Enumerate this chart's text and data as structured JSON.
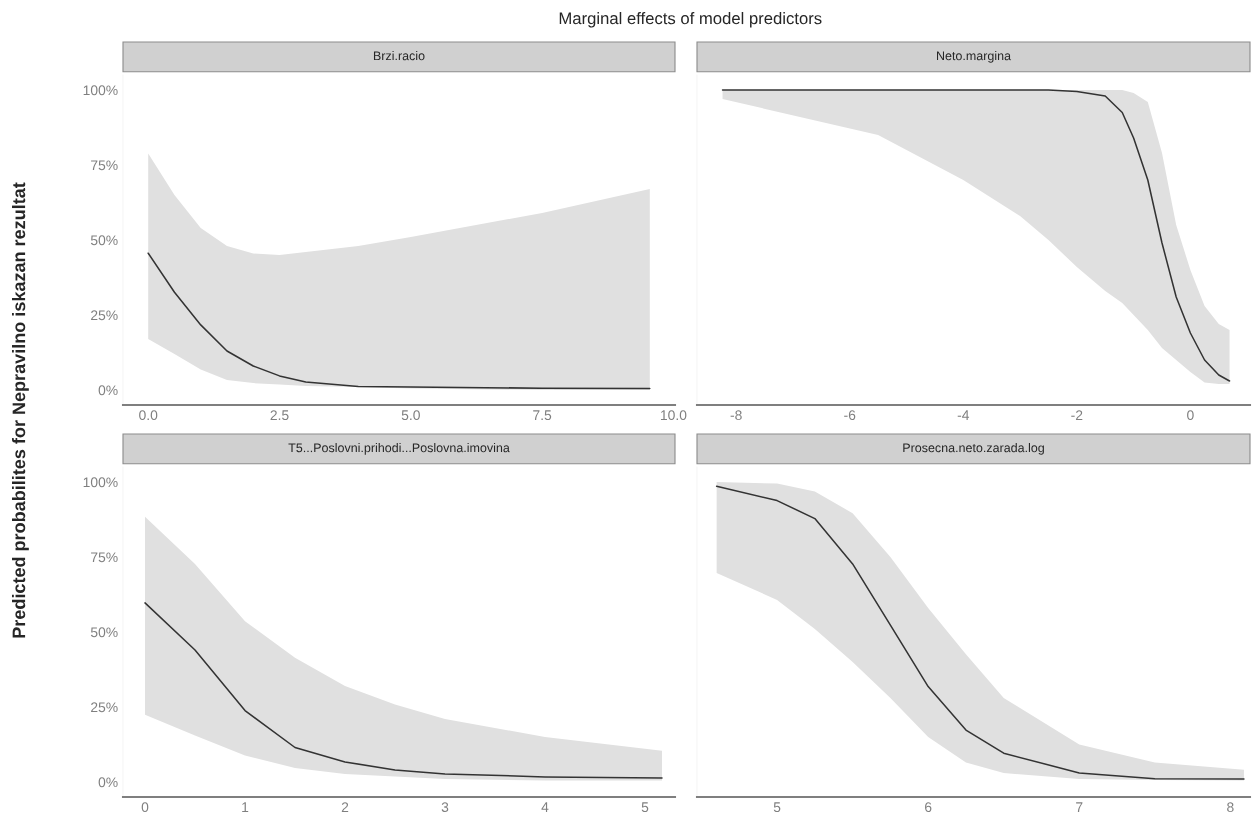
{
  "chart_data": [
    {
      "type": "other",
      "title": "Marginal effects of model predictors",
      "ylabel": "Predicted probabilites for Nepravilno iskazan rezultat"
    },
    {
      "type": "line",
      "title": "Brzi.racio",
      "xlim": [
        -0.48,
        10.03
      ],
      "xticks": [
        {
          "value": 0,
          "label": "0.0"
        },
        2.5,
        {
          "value": 5,
          "label": "5.0"
        },
        7.5,
        {
          "value": 10,
          "label": "10.0"
        }
      ],
      "ylim": [
        -5,
        105
      ],
      "yticks": [
        {
          "value": 0,
          "label": "0%"
        },
        {
          "value": 25,
          "label": "25%"
        },
        {
          "value": 50,
          "label": "50%"
        },
        {
          "value": 75,
          "label": "75%"
        },
        {
          "value": 100,
          "label": "100%"
        }
      ],
      "grid": false,
      "series": [
        {
          "color": "#333333",
          "x": [
            0,
            0.5,
            1,
            1.5,
            2,
            2.5,
            3,
            4,
            5,
            7.5,
            9.55
          ],
          "values": [
            45.6,
            32.6,
            21.7,
            13,
            8,
            4.7,
            2.7,
            1.2,
            1,
            0.6,
            0.5
          ],
          "upper": [
            78.8,
            65,
            54,
            48,
            45.5,
            45,
            46,
            48,
            51,
            59,
            67
          ],
          "lower": [
            17,
            12,
            6.8,
            3.3,
            2.3,
            1.8,
            1.3,
            1,
            0.5,
            0,
            0
          ]
        }
      ]
    },
    {
      "type": "line",
      "title": "Neto.margina",
      "xlim": [
        -8.69,
        1.05
      ],
      "xticks": [
        -8,
        -6,
        -4,
        -2,
        0
      ],
      "ylim": [
        -5,
        105
      ],
      "tick_labels": "x",
      "grid": false,
      "series": [
        {
          "color": "#333333",
          "x": [
            -8.24,
            -5.5,
            -4,
            -3,
            -2.5,
            -2,
            -1.5,
            -1.2,
            -1,
            -0.75,
            -0.5,
            -0.25,
            0,
            0.25,
            0.5,
            0.69
          ],
          "values": [
            100,
            100,
            100,
            100,
            100,
            99.5,
            98,
            92.5,
            84,
            70,
            49,
            31,
            19,
            10,
            5,
            3
          ],
          "upper": [
            100,
            100,
            100,
            100,
            100,
            100,
            100,
            100,
            99,
            96,
            79,
            55,
            40,
            28,
            22,
            20
          ],
          "lower": [
            97,
            85,
            70,
            58,
            50,
            41,
            33,
            29,
            25,
            20,
            14,
            10,
            6,
            2.5,
            2,
            2
          ]
        }
      ]
    },
    {
      "type": "line",
      "title": "T5...Poslovni.prihodi...Poslovna.imovina",
      "xlim": [
        -0.22,
        5.3
      ],
      "xticks": [
        0,
        1,
        2,
        3,
        4,
        5
      ],
      "ylim": [
        -5,
        105
      ],
      "yticks": [
        {
          "value": 0,
          "label": "0%"
        },
        {
          "value": 25,
          "label": "25%"
        },
        {
          "value": 50,
          "label": "50%"
        },
        {
          "value": 75,
          "label": "75%"
        },
        {
          "value": 100,
          "label": "100%"
        }
      ],
      "grid": false,
      "series": [
        {
          "color": "#333333",
          "x": [
            0,
            0.5,
            1,
            1.5,
            2,
            2.5,
            3,
            4,
            5.17
          ],
          "values": [
            59.7,
            44,
            23.8,
            11.5,
            6.7,
            4,
            2.7,
            1.7,
            1.3
          ],
          "upper": [
            88.4,
            72.7,
            53.6,
            41.4,
            32,
            25.8,
            21,
            15,
            10.4
          ],
          "lower": [
            22.4,
            15.5,
            8.8,
            4.7,
            2.7,
            1.8,
            1,
            0.5,
            0.5
          ]
        }
      ]
    },
    {
      "type": "line",
      "title": "Prosecna.neto.zarada.log",
      "xlim": [
        4.47,
        8.13
      ],
      "xticks": [
        5,
        6,
        7,
        8
      ],
      "ylim": [
        -5,
        105
      ],
      "tick_labels": "x",
      "grid": false,
      "series": [
        {
          "color": "#333333",
          "x": [
            4.6,
            5,
            5.25,
            5.5,
            5.75,
            6,
            6.25,
            6.5,
            7,
            7.5,
            8.09
          ],
          "values": [
            98.6,
            93.8,
            87.8,
            72.7,
            52.3,
            31.8,
            17.3,
            9.6,
            3,
            1.1,
            1
          ],
          "upper": [
            100,
            99.5,
            96.8,
            89.6,
            75,
            58,
            42.6,
            28,
            12.5,
            6.5,
            4.1
          ],
          "lower": [
            69.7,
            60.7,
            51,
            40,
            28,
            15,
            6.5,
            3,
            1,
            0.7,
            0.5
          ]
        }
      ]
    }
  ]
}
